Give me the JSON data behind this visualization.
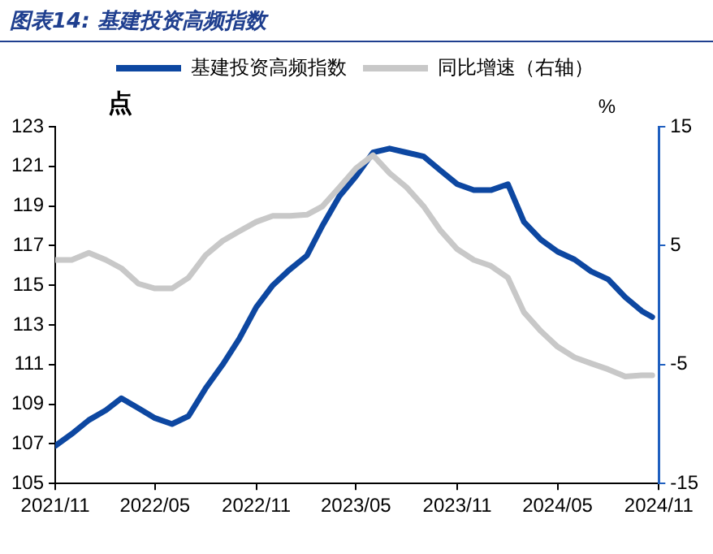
{
  "chart_data": {
    "type": "line",
    "title": "图表14: 基建投资高频指数",
    "ylabel": "点",
    "y2label": "%",
    "x": [
      "2021-11",
      "2021-12",
      "2022-01",
      "2022-02",
      "2022-03",
      "2022-04",
      "2022-05",
      "2022-06",
      "2022-07",
      "2022-08",
      "2022-09",
      "2022-10",
      "2022-11",
      "2022-12",
      "2023-01",
      "2023-02",
      "2023-03",
      "2023-04",
      "2023-05",
      "2023-06",
      "2023-07",
      "2023-08",
      "2023-09",
      "2023-10",
      "2023-11",
      "2023-12",
      "2024-01",
      "2024-02",
      "2024-03",
      "2024-04",
      "2024-05",
      "2024-06",
      "2024-07",
      "2024-08",
      "2024-09",
      "2024-10",
      "2024-10-20"
    ],
    "series": [
      {
        "name": "基建投资高频指数",
        "color": "#0d47a1",
        "values": [
          106.9,
          107.5,
          108.2,
          108.7,
          109.3,
          108.8,
          108.3,
          108.0,
          108.4,
          109.8,
          111.0,
          112.3,
          113.9,
          115.0,
          115.8,
          116.5,
          118.0,
          119.5,
          120.5,
          121.7,
          121.9,
          121.7,
          121.5,
          120.8,
          120.1,
          119.8,
          119.8,
          120.1,
          118.2,
          117.3,
          116.7,
          116.3,
          115.7,
          115.3,
          114.4,
          113.7,
          113.4
        ]
      },
      {
        "name": "同比增速（右轴）",
        "color": "#c8c8c8",
        "axis": "y2",
        "values": [
          3.8,
          3.8,
          4.4,
          3.8,
          3.1,
          1.8,
          1.4,
          1.4,
          2.3,
          4.2,
          5.4,
          6.2,
          7.0,
          7.5,
          7.5,
          7.6,
          8.3,
          9.9,
          11.5,
          12.6,
          11.1,
          9.9,
          8.3,
          6.3,
          4.7,
          3.8,
          3.3,
          2.3,
          -0.6,
          -2.2,
          -3.5,
          -4.4,
          -4.9,
          -5.4,
          -6.0,
          -5.9,
          -5.9
        ]
      }
    ],
    "xlim": [
      "2021-11",
      "2024-11"
    ],
    "xticks": [
      {
        "value": "2021-11",
        "label": "2021/11"
      },
      {
        "value": "2022-05",
        "label": "2022/05"
      },
      {
        "value": "2022-11",
        "label": "2022/11"
      },
      {
        "value": "2023-05",
        "label": "2023/05"
      },
      {
        "value": "2023-11",
        "label": "2023/11"
      },
      {
        "value": "2024-05",
        "label": "2024/05"
      },
      {
        "value": "2024-11",
        "label": "2024/11"
      }
    ],
    "ylim": [
      105,
      123
    ],
    "yticks": [
      105,
      107,
      109,
      111,
      113,
      115,
      117,
      119,
      121,
      123
    ],
    "y2lim": [
      -15,
      15
    ],
    "y2ticks": [
      -15,
      -5,
      5,
      15
    ],
    "grid": false,
    "legend": "top",
    "marker": "none",
    "line_style": "solid"
  }
}
